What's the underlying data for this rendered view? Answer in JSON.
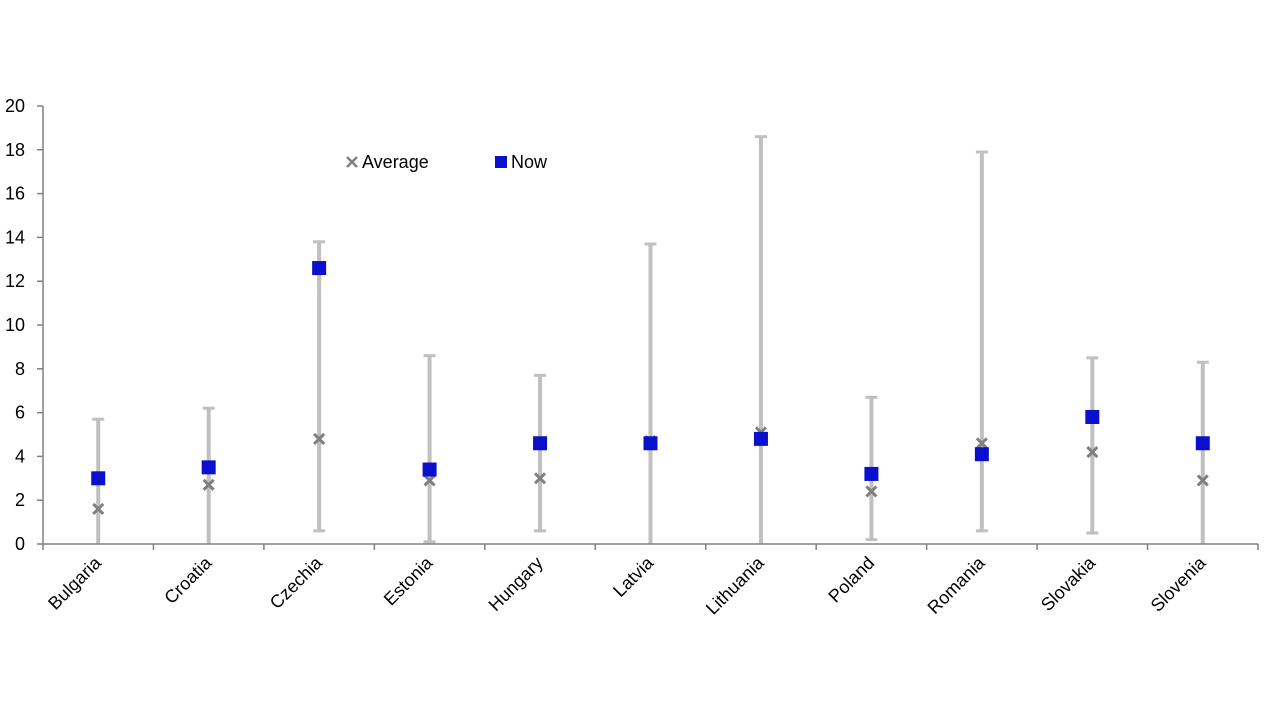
{
  "chart_data": {
    "type": "scatter",
    "categories": [
      "Bulgaria",
      "Croatia",
      "Czechia",
      "Estonia",
      "Hungary",
      "Latvia",
      "Lithuania",
      "Poland",
      "Romania",
      "Slovakia",
      "Slovenia"
    ],
    "range": {
      "min": [
        0.0,
        0.0,
        0.6,
        0.1,
        0.6,
        0.0,
        0.0,
        0.2,
        0.6,
        0.5,
        0.0
      ],
      "max": [
        5.7,
        6.2,
        13.8,
        8.6,
        7.7,
        13.7,
        18.6,
        6.7,
        17.9,
        8.5,
        8.3
      ]
    },
    "series": [
      {
        "name": "Average",
        "values": [
          1.6,
          2.7,
          4.8,
          2.9,
          3.0,
          4.7,
          5.1,
          2.4,
          4.6,
          4.2,
          2.9
        ]
      },
      {
        "name": "Now",
        "values": [
          3.0,
          3.5,
          12.6,
          3.4,
          4.6,
          4.6,
          4.8,
          3.2,
          4.1,
          5.8,
          4.6
        ]
      }
    ],
    "yticks": [
      0,
      2,
      4,
      6,
      8,
      10,
      12,
      14,
      16,
      18,
      20
    ],
    "ylim": [
      0,
      20
    ],
    "grid": false,
    "legend_position": "top-left",
    "colors": {
      "range": "#c0c0c0",
      "average": "#808080",
      "now": "#0a10cc",
      "axis": "#808080"
    }
  }
}
